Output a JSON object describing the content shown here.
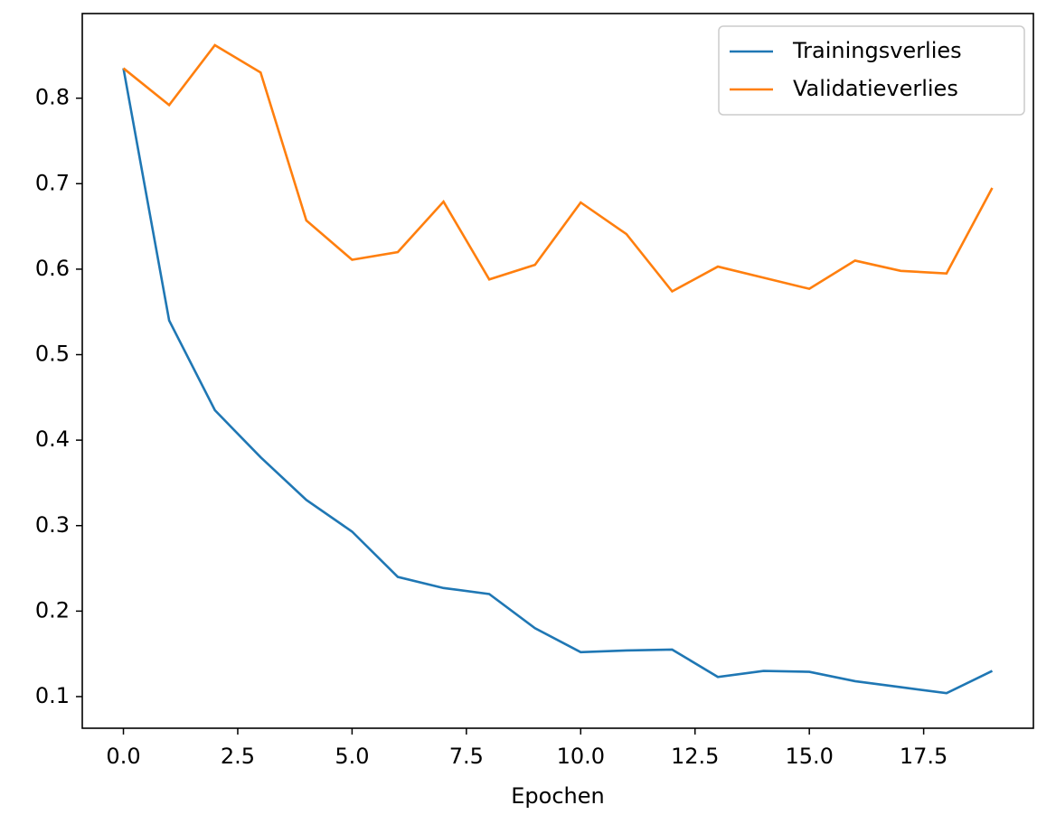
{
  "chart_data": {
    "type": "line",
    "x_label": "Epochen",
    "x": [
      0,
      1,
      2,
      3,
      4,
      5,
      6,
      7,
      8,
      9,
      10,
      11,
      12,
      13,
      14,
      15,
      16,
      17,
      18,
      19
    ],
    "series": [
      {
        "name": "Trainingsverlies",
        "color": "#1f77b4",
        "values": [
          0.835,
          0.54,
          0.435,
          0.38,
          0.33,
          0.293,
          0.24,
          0.227,
          0.22,
          0.18,
          0.152,
          0.154,
          0.155,
          0.123,
          0.13,
          0.129,
          0.118,
          0.111,
          0.104,
          0.13
        ]
      },
      {
        "name": "Validatieverlies",
        "color": "#ff7f0e",
        "values": [
          0.835,
          0.792,
          0.862,
          0.83,
          0.657,
          0.611,
          0.62,
          0.679,
          0.588,
          0.605,
          0.678,
          0.641,
          0.574,
          0.603,
          0.59,
          0.577,
          0.61,
          0.598,
          0.595,
          0.695
        ]
      }
    ],
    "xlim": [
      -0.9,
      19.9
    ],
    "ylim": [
      0.063,
      0.899
    ],
    "xticks": [
      {
        "value": 0,
        "label": "0.0"
      },
      2.5,
      {
        "value": 5,
        "label": "5.0"
      },
      7.5,
      {
        "value": 10,
        "label": "10.0"
      },
      12.5,
      {
        "value": 15,
        "label": "15.0"
      },
      17.5
    ],
    "yticks": [
      0.1,
      0.2,
      0.3,
      0.4,
      0.5,
      0.6,
      0.7,
      0.8
    ],
    "grid": false,
    "legend": "upper-right"
  }
}
